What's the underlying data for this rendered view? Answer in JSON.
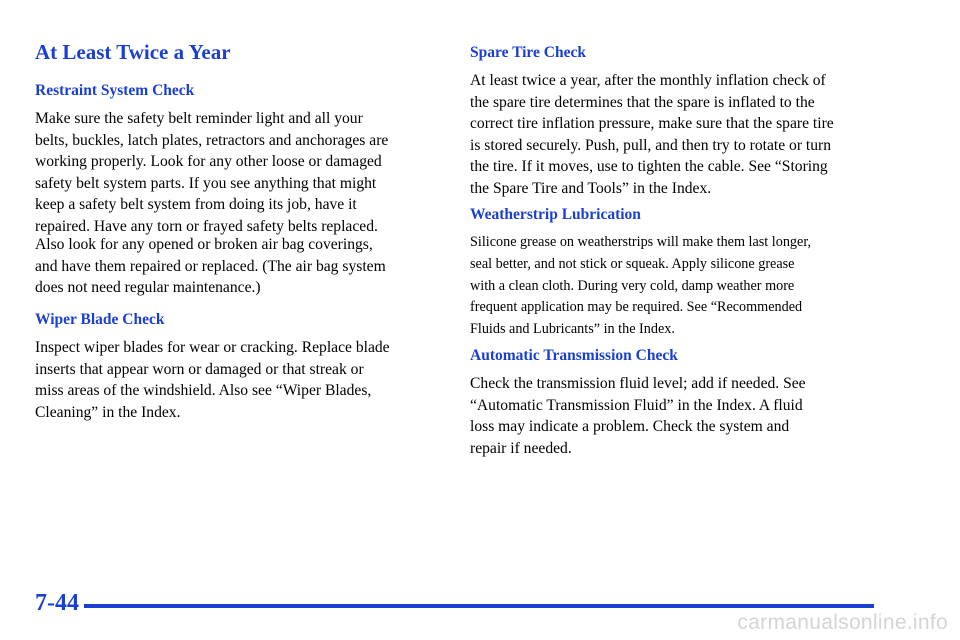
{
  "title": "At Least Twice a Year",
  "left": {
    "restraint_heading": "Restraint System Check",
    "restraint_p1": "Make sure the safety belt reminder light and all your\nbelts, buckles, latch plates, retractors and anchorages are\nworking properly. Look for any other loose or damaged\nsafety belt system parts. If you see anything that might\nkeep a safety belt system from doing its job, have it\nrepaired. Have any torn or frayed safety belts replaced.",
    "restraint_p2": "Also look for any opened or broken air bag coverings,\nand have them repaired or replaced. (The air bag system\ndoes not need regular maintenance.)",
    "wiper_heading": "Wiper Blade Check",
    "wiper_p": "Inspect wiper blades for wear or cracking. Replace blade\ninserts that appear worn or damaged or that streak or\nmiss areas of the windshield. Also see “Wiper Blades,\nCleaning” in the Index."
  },
  "right": {
    "spare_heading": "Spare Tire Check",
    "spare_p": "At least twice a year, after the monthly inflation check of\nthe spare tire determines that the spare is inflated to the\ncorrect tire inflation pressure, make sure that the spare tire\nis stored securely. Push, pull, and then try to rotate or turn\nthe tire. If it moves, use to tighten the cable. See “Storing\nthe Spare Tire and Tools” in the Index.",
    "weather_heading": "Weatherstrip Lubrication",
    "weather_p": "Silicone grease on weatherstrips will make them last longer,\nseal better, and not stick or squeak. Apply silicone grease\nwith a clean cloth. During very cold, damp weather more\nfrequent application may be required. See “Recommended\nFluids and Lubricants” in the Index.",
    "trans_heading": "Automatic Transmission Check",
    "trans_p": "Check the transmission fluid level; add if needed. See\n“Automatic Transmission Fluid” in the Index. A fluid\nloss may indicate a problem. Check the system and\nrepair if needed."
  },
  "footer": {
    "page_number": "7-44",
    "watermark": "carmanualsonline.info"
  },
  "colors": {
    "accent": "#1a3fd1",
    "text": "#000000",
    "watermark": "#d4d4d4"
  }
}
